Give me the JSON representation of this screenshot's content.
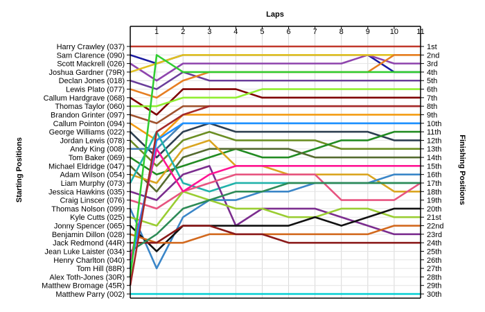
{
  "chart_data": {
    "type": "line",
    "title": "",
    "xlabel": "Laps",
    "ylabel_left": "Starting Positions",
    "ylabel_right": "Finishing Positions",
    "x_ticks": [
      1,
      2,
      3,
      4,
      5,
      6,
      7,
      8,
      9,
      10,
      11
    ],
    "xlim": [
      0,
      11
    ],
    "ylim": [
      1,
      30
    ],
    "grid": true,
    "drivers": [
      "Harry Crawley (037)",
      "Sam Clarence (090)",
      "Scott Mackrell (026)",
      "Joshua Gardner (79R)",
      "Declan Jones (018)",
      "Lewis Plato (077)",
      "Callum Hardgrave (068)",
      "Thomas Taylor (060)",
      "Brandon Grinter (097)",
      "Callum Pointon (094)",
      "George Williams (022)",
      "Jordan Lewis (078)",
      "Andy King (008)",
      "Tom Baker (069)",
      "Michael Eldridge (047)",
      "Adam Wilson (054)",
      "Liam Murphy (073)",
      "Jessica Hawkins (035)",
      "Craig Linscer (076)",
      "Thomas Nolson (099)",
      "Kyle Cutts (025)",
      "Jonny Spencer (065)",
      "Benjamin Dillon (028)",
      "Jack Redmond (44R)",
      "Jean Luke Laister (034)",
      "Henry Charlton (040)",
      "Tom Hill (88R)",
      "Alex Toth-Jones (30R)",
      "Matthew Bromage (45R)",
      "Matthew Parry (002)"
    ],
    "finishing_labels": [
      "1st",
      "2nd",
      "3rd",
      "4th",
      "5th",
      "6th",
      "7th",
      "8th",
      "9th",
      "10th",
      "11th",
      "12th",
      "13th",
      "14th",
      "15th",
      "16th",
      "17th",
      "18th",
      "19th",
      "20th",
      "21st",
      "22nd",
      "23rd",
      "24th",
      "25th",
      "26th",
      "27th",
      "28th",
      "29th",
      "30th"
    ],
    "series": [
      {
        "color": "#c0392b",
        "values": [
          1,
          1,
          1,
          1,
          1,
          1,
          1,
          1,
          1,
          1,
          1,
          1
        ]
      },
      {
        "color": "#1a1aa0",
        "values": [
          2,
          3,
          2,
          2,
          2,
          2,
          2,
          2,
          2,
          2,
          4,
          4
        ]
      },
      {
        "color": "#8e44ad",
        "values": [
          3,
          5,
          3,
          3,
          3,
          3,
          3,
          3,
          3,
          2,
          3,
          3
        ]
      },
      {
        "color": "#e0c020",
        "values": [
          4,
          3,
          2,
          2,
          2,
          2,
          2,
          2,
          2,
          2,
          2,
          2
        ]
      },
      {
        "color": "#6a3d9a",
        "values": [
          5,
          6,
          4,
          5,
          5,
          5,
          5,
          5,
          5,
          5,
          5,
          5
        ]
      },
      {
        "color": "#e67e22",
        "values": [
          6,
          7,
          5,
          4,
          4,
          4,
          4,
          4,
          4,
          4,
          2,
          2
        ]
      },
      {
        "color": "#7f0000",
        "values": [
          7,
          9,
          6,
          6,
          6,
          7,
          7,
          7,
          7,
          7,
          7,
          7
        ]
      },
      {
        "color": "#90ee30",
        "values": [
          8,
          8,
          7,
          7,
          7,
          6,
          6,
          6,
          6,
          6,
          6,
          6
        ]
      },
      {
        "color": "#a0522d",
        "values": [
          9,
          10,
          8,
          8,
          8,
          8,
          8,
          8,
          8,
          8,
          8,
          8
        ]
      },
      {
        "color": "#f39c12",
        "values": [
          10,
          12,
          9,
          9,
          9,
          9,
          9,
          9,
          9,
          9,
          9,
          9
        ]
      },
      {
        "color": "#2c3e50",
        "values": [
          11,
          14,
          11,
          10,
          11,
          11,
          11,
          11,
          11,
          11,
          12,
          12
        ]
      },
      {
        "color": "#6b8e23",
        "values": [
          12,
          15,
          12,
          11,
          12,
          12,
          12,
          12,
          13,
          13,
          13,
          13
        ]
      },
      {
        "color": "#4682b4",
        "values": [
          13,
          13,
          10,
          10,
          10,
          10,
          10,
          10,
          10,
          10,
          10,
          10
        ]
      },
      {
        "color": "#228b22",
        "values": [
          14,
          16,
          15,
          14,
          13,
          14,
          14,
          13,
          12,
          12,
          11,
          11
        ]
      },
      {
        "color": "#556b2f",
        "values": [
          15,
          18,
          14,
          13,
          13,
          13,
          13,
          14,
          14,
          14,
          14,
          14
        ]
      },
      {
        "color": "#daa520",
        "values": [
          16,
          17,
          13,
          12,
          15,
          15,
          16,
          16,
          16,
          16,
          18,
          18
        ]
      },
      {
        "color": "#20b2aa",
        "values": [
          17,
          11,
          17,
          18,
          17,
          17,
          17,
          17,
          17,
          17,
          17,
          17
        ]
      },
      {
        "color": "#7b2d8e",
        "values": [
          18,
          19,
          16,
          15,
          22,
          20,
          20,
          20,
          21,
          22,
          23,
          23
        ]
      },
      {
        "color": "#e75480",
        "values": [
          19,
          20,
          18,
          17,
          16,
          16,
          16,
          16,
          19,
          19,
          19,
          17
        ]
      },
      {
        "color": "#3a86c8",
        "values": [
          20,
          27,
          21,
          19,
          19,
          18,
          18,
          17,
          17,
          17,
          16,
          16
        ]
      },
      {
        "color": "#9acd32",
        "values": [
          21,
          22,
          18,
          19,
          20,
          20,
          21,
          21,
          20,
          20,
          21,
          21
        ]
      },
      {
        "color": "#111111",
        "values": [
          22,
          25,
          22,
          22,
          22,
          22,
          22,
          21,
          22,
          21,
          20,
          20
        ]
      },
      {
        "color": "#d2691e",
        "values": [
          23,
          24,
          24,
          23,
          23,
          23,
          23,
          23,
          23,
          23,
          22,
          22
        ]
      },
      {
        "color": "#8b1a1a",
        "values": [
          24,
          24,
          22,
          22,
          23,
          23,
          24,
          24,
          24,
          24,
          24,
          24
        ]
      },
      {
        "color": "#2e8b57",
        "values": [
          25,
          23,
          20,
          19,
          18,
          18,
          17,
          17,
          17,
          17,
          17,
          17
        ]
      },
      {
        "color": "#ff1493",
        "values": [
          26,
          13,
          18,
          16,
          15,
          15,
          15,
          15,
          15,
          15,
          15,
          15
        ]
      },
      {
        "color": "#1e90ff",
        "values": [
          27,
          12,
          10,
          10,
          10,
          10,
          10,
          10,
          10,
          10,
          10,
          10
        ]
      },
      {
        "color": "#32cd32",
        "values": [
          28,
          2,
          4,
          4,
          4,
          4,
          4,
          4,
          4,
          4,
          4,
          4
        ]
      },
      {
        "color": "#a52a2a",
        "values": [
          29,
          11,
          9,
          8,
          8,
          8,
          8,
          8,
          8,
          8,
          8,
          8
        ]
      },
      {
        "color": "#00ced1",
        "values": [
          30,
          30,
          30,
          30,
          30,
          30,
          30,
          30,
          30,
          30,
          30,
          30
        ]
      }
    ]
  }
}
